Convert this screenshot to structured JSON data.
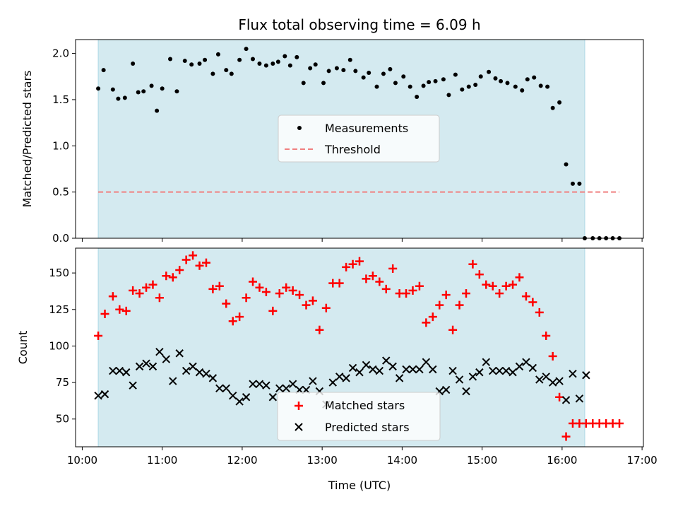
{
  "figure": {
    "title": "Flux total observing time = 6.09 h",
    "xlabel": "Time (UTC)",
    "xticks": [
      "10:00",
      "11:00",
      "12:00",
      "13:00",
      "14:00",
      "15:00",
      "16:00",
      "17:00"
    ]
  },
  "colors": {
    "shade": "#d4eaf0",
    "shade_edge": "#add8e6",
    "measurements": "#000000",
    "threshold": "#f08080",
    "matched": "#ff0000",
    "predicted": "#000000"
  },
  "chart_data": [
    {
      "type": "scatter",
      "ylabel": "Matched/Predicted stars",
      "xlim": [
        "09:55",
        "17:01"
      ],
      "ylim": [
        0,
        2.15
      ],
      "yticks": [
        "0.0",
        "0.5",
        "1.0",
        "1.5",
        "2.0"
      ],
      "observing_window": [
        "10:12",
        "16:17"
      ],
      "legend": {
        "position": "center",
        "entries": [
          "Measurements",
          "Threshold"
        ]
      },
      "threshold": {
        "name": "Threshold",
        "y": 0.5,
        "x_range": [
          "10:12",
          "16:43"
        ]
      },
      "series": [
        {
          "name": "Measurements",
          "x": [
            "10:12",
            "10:16",
            "10:23",
            "10:27",
            "10:32",
            "10:38",
            "10:42",
            "10:46",
            "10:52",
            "10:56",
            "11:00",
            "11:06",
            "11:11",
            "11:17",
            "11:22",
            "11:28",
            "11:32",
            "11:38",
            "11:42",
            "11:48",
            "11:52",
            "11:58",
            "12:03",
            "12:08",
            "12:13",
            "12:18",
            "12:23",
            "12:27",
            "12:32",
            "12:36",
            "12:41",
            "12:46",
            "12:51",
            "12:55",
            "13:01",
            "13:05",
            "13:11",
            "13:16",
            "13:21",
            "13:25",
            "13:31",
            "13:35",
            "13:41",
            "13:46",
            "13:51",
            "13:55",
            "14:01",
            "14:06",
            "14:11",
            "14:16",
            "14:20",
            "14:25",
            "14:31",
            "14:35",
            "14:40",
            "14:45",
            "14:50",
            "14:55",
            "14:59",
            "15:05",
            "15:10",
            "15:14",
            "15:19",
            "15:25",
            "15:30",
            "15:34",
            "15:39",
            "15:44",
            "15:49",
            "15:53",
            "15:58",
            "16:03",
            "16:08",
            "16:13",
            "16:17",
            "16:23",
            "16:28",
            "16:33",
            "16:38",
            "16:43"
          ],
          "y": [
            1.62,
            1.82,
            1.61,
            1.51,
            1.52,
            1.89,
            1.58,
            1.59,
            1.65,
            1.38,
            1.62,
            1.94,
            1.59,
            1.92,
            1.88,
            1.89,
            1.93,
            1.78,
            1.99,
            1.82,
            1.78,
            1.93,
            2.05,
            1.94,
            1.89,
            1.87,
            1.89,
            1.91,
            1.97,
            1.87,
            1.96,
            1.68,
            1.84,
            1.88,
            1.68,
            1.81,
            1.84,
            1.82,
            1.93,
            1.81,
            1.74,
            1.79,
            1.64,
            1.78,
            1.83,
            1.68,
            1.75,
            1.64,
            1.53,
            1.65,
            1.69,
            1.7,
            1.72,
            1.55,
            1.77,
            1.61,
            1.64,
            1.66,
            1.75,
            1.8,
            1.73,
            1.7,
            1.68,
            1.64,
            1.6,
            1.72,
            1.74,
            1.65,
            1.64,
            1.41,
            1.47,
            0.8,
            0.59,
            0.59,
            0.0,
            0.0,
            0.0,
            0.0,
            0.0,
            0.0
          ]
        }
      ]
    },
    {
      "type": "scatter",
      "ylabel": "Count",
      "xlim": [
        "09:55",
        "17:01"
      ],
      "ylim": [
        31,
        167
      ],
      "yticks": [
        "50",
        "75",
        "100",
        "125",
        "150"
      ],
      "observing_window": [
        "10:12",
        "16:17"
      ],
      "legend": {
        "position": "lower center",
        "entries": [
          "Matched stars",
          "Predicted stars"
        ]
      },
      "series": [
        {
          "name": "Matched stars",
          "x": [
            "10:12",
            "10:17",
            "10:23",
            "10:28",
            "10:33",
            "10:38",
            "10:43",
            "10:48",
            "10:53",
            "10:58",
            "11:03",
            "11:08",
            "11:13",
            "11:18",
            "11:23",
            "11:28",
            "11:33",
            "11:38",
            "11:43",
            "11:48",
            "11:53",
            "11:58",
            "12:03",
            "12:08",
            "12:13",
            "12:18",
            "12:23",
            "12:28",
            "12:33",
            "12:38",
            "12:43",
            "12:48",
            "12:53",
            "12:58",
            "13:03",
            "13:08",
            "13:13",
            "13:18",
            "13:23",
            "13:28",
            "13:33",
            "13:38",
            "13:43",
            "13:48",
            "13:53",
            "13:58",
            "14:03",
            "14:08",
            "14:13",
            "14:18",
            "14:23",
            "14:28",
            "14:33",
            "14:38",
            "14:43",
            "14:48",
            "14:53",
            "14:58",
            "15:03",
            "15:08",
            "15:13",
            "15:18",
            "15:23",
            "15:28",
            "15:33",
            "15:38",
            "15:43",
            "15:48",
            "15:53",
            "15:58",
            "16:03",
            "16:08",
            "16:13",
            "16:18",
            "16:23",
            "16:28",
            "16:33",
            "16:38",
            "16:43"
          ],
          "y": [
            107,
            122,
            134,
            125,
            124,
            138,
            136,
            140,
            142,
            133,
            148,
            147,
            152,
            159,
            162,
            155,
            157,
            139,
            141,
            129,
            117,
            120,
            133,
            144,
            140,
            137,
            124,
            136,
            140,
            138,
            135,
            128,
            131,
            111,
            126,
            143,
            143,
            154,
            156,
            158,
            146,
            148,
            144,
            139,
            153,
            136,
            136,
            138,
            141,
            116,
            120,
            128,
            135,
            111,
            128,
            136,
            156,
            149,
            142,
            141,
            136,
            141,
            142,
            147,
            134,
            130,
            123,
            107,
            93,
            65,
            38,
            47,
            47,
            47,
            47,
            47,
            47,
            47,
            47
          ]
        },
        {
          "name": "Predicted stars",
          "x": [
            "10:12",
            "10:17",
            "10:23",
            "10:28",
            "10:33",
            "10:38",
            "10:43",
            "10:48",
            "10:53",
            "10:58",
            "11:03",
            "11:08",
            "11:13",
            "11:18",
            "11:23",
            "11:28",
            "11:33",
            "11:38",
            "11:43",
            "11:48",
            "11:53",
            "11:58",
            "12:03",
            "12:08",
            "12:13",
            "12:18",
            "12:23",
            "12:28",
            "12:33",
            "12:38",
            "12:43",
            "12:48",
            "12:53",
            "12:58",
            "13:03",
            "13:08",
            "13:13",
            "13:18",
            "13:23",
            "13:28",
            "13:33",
            "13:38",
            "13:43",
            "13:48",
            "13:53",
            "13:58",
            "14:03",
            "14:08",
            "14:13",
            "14:18",
            "14:23",
            "14:28",
            "14:33",
            "14:38",
            "14:43",
            "14:48",
            "14:53",
            "14:58",
            "15:03",
            "15:08",
            "15:13",
            "15:18",
            "15:23",
            "15:28",
            "15:33",
            "15:38",
            "15:43",
            "15:48",
            "15:53",
            "15:58",
            "16:03",
            "16:08",
            "16:13",
            "16:18"
          ],
          "y": [
            66,
            67,
            83,
            83,
            82,
            73,
            86,
            88,
            86,
            96,
            91,
            76,
            95,
            83,
            86,
            82,
            81,
            78,
            71,
            71,
            66,
            62,
            65,
            74,
            74,
            73,
            65,
            71,
            71,
            74,
            70,
            70,
            76,
            69,
            60,
            75,
            79,
            78,
            85,
            82,
            87,
            84,
            83,
            90,
            86,
            78,
            84,
            84,
            84,
            89,
            84,
            69,
            70,
            83,
            77,
            69,
            79,
            82,
            89,
            83,
            83,
            83,
            82,
            86,
            89,
            85,
            77,
            79,
            75,
            76,
            63,
            81,
            64,
            80
          ]
        }
      ]
    }
  ]
}
